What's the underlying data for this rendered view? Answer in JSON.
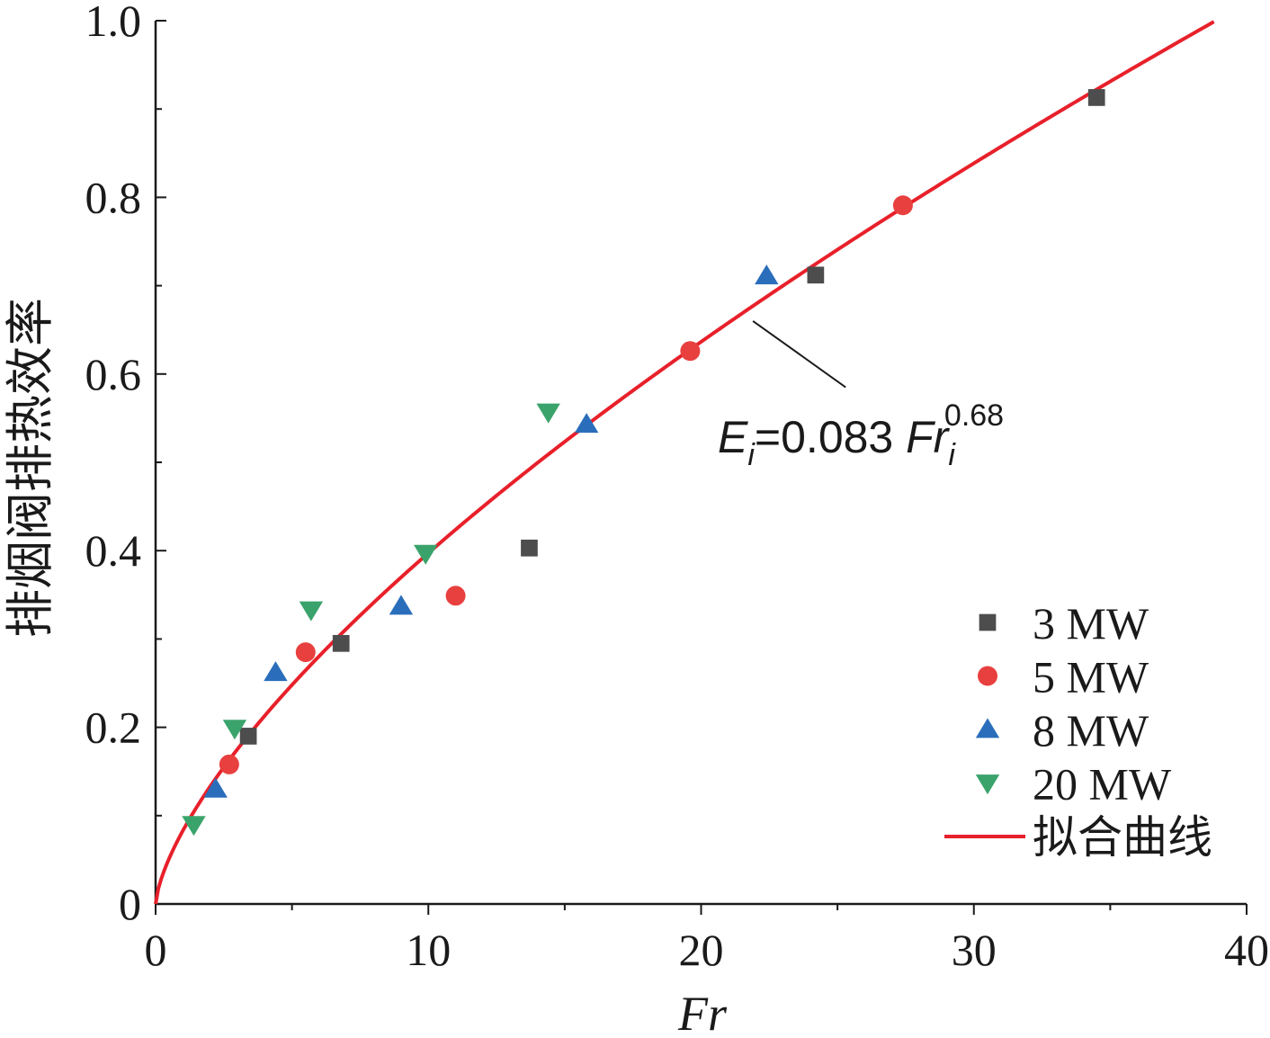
{
  "chart_data": {
    "type": "scatter",
    "xlabel": "Fr",
    "ylabel": "排烟阀排热效率",
    "xlim": [
      0,
      40
    ],
    "ylim": [
      0,
      1.0
    ],
    "x_ticks": [
      "0",
      "10",
      "20",
      "30",
      "40"
    ],
    "y_ticks": [
      "0",
      "0.2",
      "0.4",
      "0.6",
      "0.8",
      "1.0"
    ],
    "series": [
      {
        "name": "3 MW",
        "marker": "square",
        "color": "#4d4d4d",
        "points": [
          [
            3.4,
            0.19
          ],
          [
            6.8,
            0.295
          ],
          [
            13.7,
            0.403
          ],
          [
            24.2,
            0.712
          ],
          [
            34.5,
            0.913
          ]
        ]
      },
      {
        "name": "5 MW",
        "marker": "circle",
        "color": "#e8403f",
        "points": [
          [
            2.7,
            0.158
          ],
          [
            5.5,
            0.285
          ],
          [
            11.0,
            0.349
          ],
          [
            19.6,
            0.626
          ],
          [
            27.4,
            0.791
          ]
        ]
      },
      {
        "name": "8 MW",
        "marker": "triangle-up",
        "color": "#2a6ebb",
        "points": [
          [
            2.2,
            0.13
          ],
          [
            4.4,
            0.262
          ],
          [
            9.0,
            0.337
          ],
          [
            15.8,
            0.543
          ],
          [
            22.4,
            0.711
          ]
        ]
      },
      {
        "name": "20 MW",
        "marker": "triangle-down",
        "color": "#3aa36b",
        "points": [
          [
            1.4,
            0.09
          ],
          [
            2.9,
            0.199
          ],
          [
            5.7,
            0.333
          ],
          [
            9.9,
            0.397
          ],
          [
            14.4,
            0.557
          ]
        ]
      }
    ],
    "fit": {
      "name": "拟合曲线",
      "color": "#e8202a",
      "coefficient": 0.083,
      "exponent": 0.68
    },
    "annotation": {
      "E": "E",
      "sub1": "i",
      "eq": "=0.083 ",
      "Fr": "Fr",
      "sub2": "i",
      "exp": "0.68"
    },
    "legend_position": "bottom-right",
    "grid": false
  }
}
